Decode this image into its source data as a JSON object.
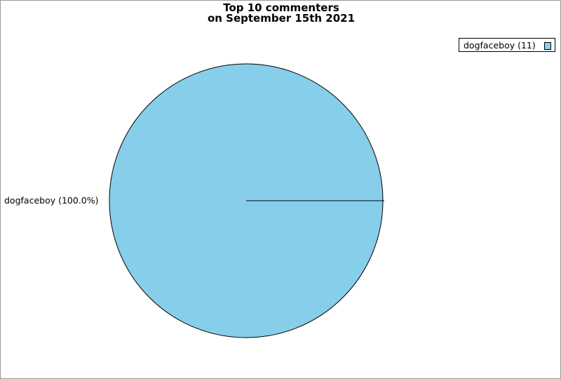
{
  "chart_data": {
    "type": "pie",
    "title": [
      "Top 10 commenters",
      "on September 15th 2021"
    ],
    "slices": [
      {
        "name": "dogfaceboy",
        "value": 11,
        "percent": 100.0,
        "color": "#87ceeb",
        "label": "dogfaceboy (100.0%)",
        "legend": "dogfaceboy (11)"
      }
    ],
    "legend_position": "top-right"
  }
}
